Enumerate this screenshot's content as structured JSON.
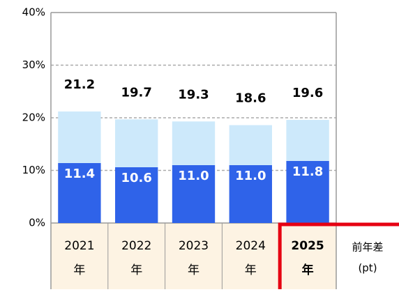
{
  "chart_data": {
    "type": "stacked-bar",
    "categories": [
      [
        "2021",
        "年"
      ],
      [
        "2022",
        "年"
      ],
      [
        "2023",
        "年"
      ],
      [
        "2024",
        "年"
      ],
      [
        "2025",
        "年"
      ]
    ],
    "highlight_category": 4,
    "extra_column": [
      "前年差",
      "(pt)"
    ],
    "series": [
      {
        "color": "#2f63e9",
        "values": [
          11.4,
          10.6,
          11.0,
          11.0,
          11.8
        ],
        "value_labels": [
          "11.4",
          "10.6",
          "11.0",
          "11.0",
          "11.8"
        ]
      },
      {
        "color": "#cde9fb",
        "values": [
          9.8,
          9.1,
          8.3,
          7.6,
          7.8
        ]
      }
    ],
    "totals": [
      21.2,
      19.7,
      19.3,
      18.6,
      19.6
    ],
    "ylim": [
      0,
      40
    ],
    "yticks": [
      {
        "value": 0,
        "label": "0%"
      },
      {
        "value": 10,
        "label": "10%"
      },
      {
        "value": 20,
        "label": "20%"
      },
      {
        "value": 30,
        "label": "30%"
      },
      {
        "value": 40,
        "label": "40%"
      }
    ],
    "grid": true
  }
}
